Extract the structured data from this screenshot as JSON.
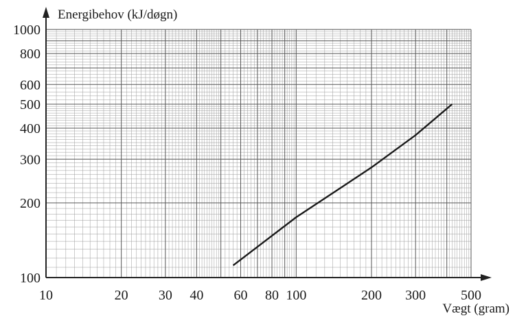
{
  "chart_data": {
    "type": "line",
    "title": "",
    "ylabel": "Energibehov (kJ/døgn)",
    "xlabel": "Vægt (gram)",
    "xscale": "log",
    "yscale": "log",
    "xlim": [
      10,
      500
    ],
    "ylim": [
      100,
      1000
    ],
    "grid": true,
    "x_tick_labels": [
      "10",
      "20",
      "30",
      "40",
      "60",
      "80",
      "100",
      "200",
      "300",
      "500"
    ],
    "y_tick_labels": [
      "100",
      "200",
      "300",
      "400",
      "500",
      "600",
      "800",
      "1000"
    ],
    "series": [
      {
        "x": [
          56,
          100,
          200,
          300,
          420
        ],
        "y": [
          112,
          175,
          278,
          375,
          500
        ]
      }
    ]
  }
}
